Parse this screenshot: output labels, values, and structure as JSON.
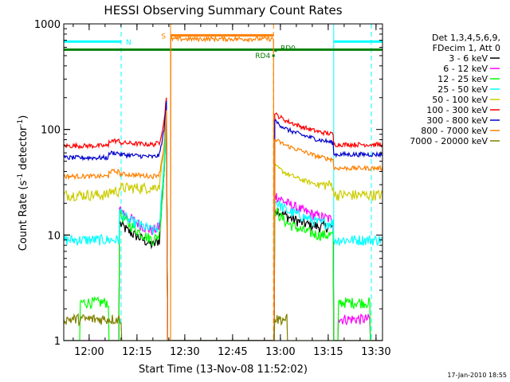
{
  "chart_data": {
    "type": "line",
    "title": "HESSI Observing Summary Count Rates",
    "xlabel": "Start Time (13-Nov-08 11:52:02)",
    "ylabel_prefix": "Count Rate (s",
    "ylabel_exp1": "-1",
    "ylabel_mid": " detector",
    "ylabel_exp2": "-1",
    "ylabel_suffix": ")",
    "y_scale": "log",
    "ylim": [
      1,
      1000
    ],
    "xlim_minutes": [
      0,
      100
    ],
    "x_ticks": [
      {
        "minute": 7.97,
        "label": "12:00"
      },
      {
        "minute": 22.97,
        "label": "12:15"
      },
      {
        "minute": 37.97,
        "label": "12:30"
      },
      {
        "minute": 52.97,
        "label": "12:45"
      },
      {
        "minute": 67.97,
        "label": "13:00"
      },
      {
        "minute": 82.97,
        "label": "13:15"
      },
      {
        "minute": 97.97,
        "label": "13:30"
      }
    ],
    "y_ticks": [
      {
        "value": 1,
        "label": "1"
      },
      {
        "value": 10,
        "label": "10"
      },
      {
        "value": 100,
        "label": "100"
      },
      {
        "value": 1000,
        "label": "1000"
      }
    ],
    "legend_header": [
      "Det 1,3,4,5,6,9,",
      "FDecim 1, Att 0"
    ],
    "legend_position": "right",
    "series": [
      {
        "name": "3 - 6 keV",
        "color": "#000000",
        "points": [
          [
            0,
            1.0
          ],
          [
            17.3,
            1.0
          ],
          [
            17.5,
            13
          ],
          [
            20,
            11
          ],
          [
            25,
            9
          ],
          [
            28,
            8
          ],
          [
            30,
            9
          ],
          [
            31.5,
            40
          ],
          [
            32.2,
            120
          ],
          [
            32.6,
            1.0
          ],
          [
            66,
            1.0
          ],
          [
            66.2,
            18
          ],
          [
            70,
            15
          ],
          [
            75,
            13
          ],
          [
            80,
            12
          ],
          [
            84.5,
            12
          ],
          [
            84.7,
            1.0
          ],
          [
            100,
            1.0
          ]
        ]
      },
      {
        "name": "6 - 12 keV",
        "color": "#ff00ff",
        "points": [
          [
            0,
            1.0
          ],
          [
            17.3,
            1.0
          ],
          [
            17.5,
            18
          ],
          [
            20,
            15
          ],
          [
            25,
            12
          ],
          [
            28,
            11
          ],
          [
            30,
            12
          ],
          [
            31.5,
            45
          ],
          [
            32.2,
            130
          ],
          [
            32.6,
            1.0
          ],
          [
            66,
            1.0
          ],
          [
            66.2,
            24
          ],
          [
            70,
            20
          ],
          [
            75,
            17
          ],
          [
            80,
            15
          ],
          [
            84.5,
            14
          ],
          [
            84.7,
            1.0
          ],
          [
            86,
            1.0
          ],
          [
            86.2,
            1.6
          ],
          [
            96,
            1.6
          ],
          [
            96.2,
            1.0
          ],
          [
            100,
            1.0
          ]
        ]
      },
      {
        "name": "12 - 25 keV",
        "color": "#00ff00",
        "points": [
          [
            0,
            1.0
          ],
          [
            5,
            1.0
          ],
          [
            5.2,
            2.3
          ],
          [
            14,
            2.3
          ],
          [
            14.2,
            1.0
          ],
          [
            17.3,
            1.0
          ],
          [
            17.5,
            16
          ],
          [
            20,
            13
          ],
          [
            25,
            10
          ],
          [
            28,
            9
          ],
          [
            30,
            10
          ],
          [
            31.5,
            40
          ],
          [
            32.2,
            120
          ],
          [
            32.6,
            1.0
          ],
          [
            66,
            1.0
          ],
          [
            66.2,
            17
          ],
          [
            70,
            13
          ],
          [
            75,
            11
          ],
          [
            80,
            10
          ],
          [
            84.5,
            10
          ],
          [
            84.7,
            1.0
          ],
          [
            86,
            1.0
          ],
          [
            86.2,
            2.3
          ],
          [
            96,
            2.3
          ],
          [
            96.2,
            1.0
          ],
          [
            100,
            1.0
          ]
        ]
      },
      {
        "name": "25 - 50 keV",
        "color": "#00ffff",
        "points": [
          [
            0,
            9
          ],
          [
            17.3,
            9
          ],
          [
            17.5,
            17
          ],
          [
            20,
            14
          ],
          [
            25,
            12
          ],
          [
            28,
            11
          ],
          [
            30,
            12
          ],
          [
            31.5,
            50
          ],
          [
            32.2,
            140
          ],
          [
            32.6,
            1.0
          ],
          [
            66,
            1.0
          ],
          [
            66.2,
            21
          ],
          [
            70,
            17
          ],
          [
            75,
            15
          ],
          [
            80,
            13
          ],
          [
            84.5,
            13
          ],
          [
            84.7,
            9
          ],
          [
            100,
            9
          ]
        ]
      },
      {
        "name": "50 - 100 keV",
        "color": "#cccc00",
        "points": [
          [
            0,
            24
          ],
          [
            14,
            24
          ],
          [
            14.2,
            26
          ],
          [
            17.3,
            26
          ],
          [
            17.5,
            28
          ],
          [
            28,
            28
          ],
          [
            30,
            30
          ],
          [
            31.5,
            70
          ],
          [
            32.2,
            170
          ],
          [
            32.6,
            1.0
          ],
          [
            66,
            1.0
          ],
          [
            66.2,
            45
          ],
          [
            70,
            38
          ],
          [
            75,
            33
          ],
          [
            80,
            30
          ],
          [
            84.5,
            30
          ],
          [
            84.7,
            24
          ],
          [
            100,
            24
          ]
        ]
      },
      {
        "name": "100 - 300 keV",
        "color": "#ff0000",
        "points": [
          [
            0,
            70
          ],
          [
            14,
            70
          ],
          [
            14.2,
            78
          ],
          [
            17.3,
            78
          ],
          [
            17.5,
            75
          ],
          [
            28,
            72
          ],
          [
            30,
            75
          ],
          [
            31.5,
            120
          ],
          [
            32.2,
            210
          ],
          [
            32.6,
            1.0
          ],
          [
            66,
            1.0
          ],
          [
            66.2,
            140
          ],
          [
            70,
            120
          ],
          [
            75,
            105
          ],
          [
            80,
            95
          ],
          [
            84.5,
            90
          ],
          [
            84.7,
            72
          ],
          [
            100,
            72
          ]
        ]
      },
      {
        "name": "300 - 800 keV",
        "color": "#0000cc",
        "points": [
          [
            0,
            54
          ],
          [
            14,
            54
          ],
          [
            14.2,
            60
          ],
          [
            17.3,
            60
          ],
          [
            17.5,
            58
          ],
          [
            28,
            55
          ],
          [
            30,
            57
          ],
          [
            31.5,
            100
          ],
          [
            32.2,
            190
          ],
          [
            32.6,
            1.0
          ],
          [
            66,
            1.0
          ],
          [
            66.2,
            120
          ],
          [
            70,
            100
          ],
          [
            75,
            88
          ],
          [
            80,
            80
          ],
          [
            84.5,
            75
          ],
          [
            84.7,
            58
          ],
          [
            100,
            58
          ]
        ]
      },
      {
        "name": "800 - 7000 keV",
        "color": "#ff8000",
        "points": [
          [
            0,
            36
          ],
          [
            14,
            36
          ],
          [
            14.2,
            40
          ],
          [
            17.3,
            40
          ],
          [
            17.5,
            38
          ],
          [
            28,
            36
          ],
          [
            30,
            38
          ],
          [
            31.5,
            70
          ],
          [
            32.2,
            150
          ],
          [
            32.6,
            1.0
          ],
          [
            33.5,
            1.0
          ],
          [
            33.6,
            720
          ],
          [
            65.8,
            720
          ],
          [
            66,
            1.0
          ],
          [
            66.2,
            80
          ],
          [
            70,
            70
          ],
          [
            75,
            62
          ],
          [
            80,
            55
          ],
          [
            84.5,
            52
          ],
          [
            84.7,
            43
          ],
          [
            100,
            43
          ]
        ]
      },
      {
        "name": "7000 - 20000 keV",
        "color": "#808000",
        "points": [
          [
            0,
            1.6
          ],
          [
            18,
            1.6
          ],
          [
            18.2,
            1.0
          ],
          [
            66,
            1.0
          ],
          [
            66.2,
            1.6
          ],
          [
            70,
            1.6
          ],
          [
            70.2,
            1.0
          ],
          [
            100,
            1.0
          ]
        ]
      }
    ],
    "flag_bars": [
      {
        "name": "SAA-cyan-left",
        "color": "#00ffff",
        "x_start": 0,
        "x_end": 18,
        "y": 680,
        "label": "N"
      },
      {
        "name": "SAA-cyan-right",
        "color": "#00ffff",
        "x_start": 84.7,
        "x_end": 100,
        "y": 680,
        "label": ""
      },
      {
        "name": "S-bar",
        "color": "#ff8000",
        "x_start": 33.6,
        "x_end": 65.8,
        "y": 780,
        "label": "S"
      },
      {
        "name": "green-bar",
        "color": "#008000",
        "x_start": 0,
        "x_end": 100,
        "y": 570,
        "label": ""
      }
    ],
    "markers": [
      {
        "label": "RD4",
        "x": 65.8,
        "y": 500,
        "color": "#008000"
      },
      {
        "label": "RD0",
        "x": 66.5,
        "y": 560,
        "color": "#008000"
      }
    ],
    "vlines": [
      {
        "x": 18,
        "color": "#00ffff",
        "style": "dashed"
      },
      {
        "x": 33.5,
        "color": "#ff8000",
        "style": "solid"
      },
      {
        "x": 65.8,
        "color": "#ff8000",
        "style": "dashed"
      },
      {
        "x": 84.7,
        "color": "#00ffff",
        "style": "solid"
      },
      {
        "x": 96.5,
        "color": "#00ffff",
        "style": "dashed"
      }
    ]
  },
  "footer_date": "17-Jan-2010 18:55"
}
